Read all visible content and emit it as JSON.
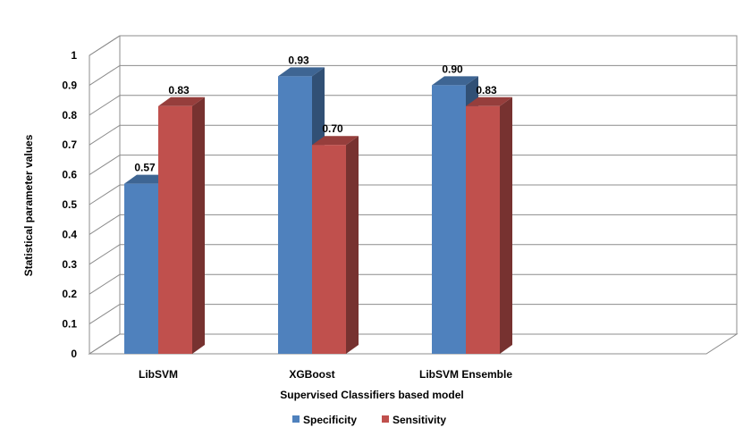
{
  "chart_data": {
    "type": "bar",
    "title": "",
    "xlabel": "Supervised Classifiers based model",
    "ylabel": "Statistical parameter values",
    "ylim": [
      0,
      1
    ],
    "yticks": [
      "0",
      "0.1",
      "0.2",
      "0.3",
      "0.4",
      "0.5",
      "0.6",
      "0.7",
      "0.8",
      "0.9",
      "1"
    ],
    "categories": [
      "LibSVM",
      "XGBoost",
      "LibSVM Ensemble"
    ],
    "series": [
      {
        "name": "Specificity",
        "values": [
          0.57,
          0.93,
          0.9
        ],
        "labels": [
          "0.57",
          "0.93",
          "0.90"
        ],
        "color": "#4F81BD"
      },
      {
        "name": "Sensitivity",
        "values": [
          0.83,
          0.7,
          0.83
        ],
        "labels": [
          "0.83",
          "0.70",
          "0.83"
        ],
        "color": "#C0504D"
      }
    ],
    "grid": true,
    "legend": "bottom",
    "style": "3d-clustered"
  }
}
